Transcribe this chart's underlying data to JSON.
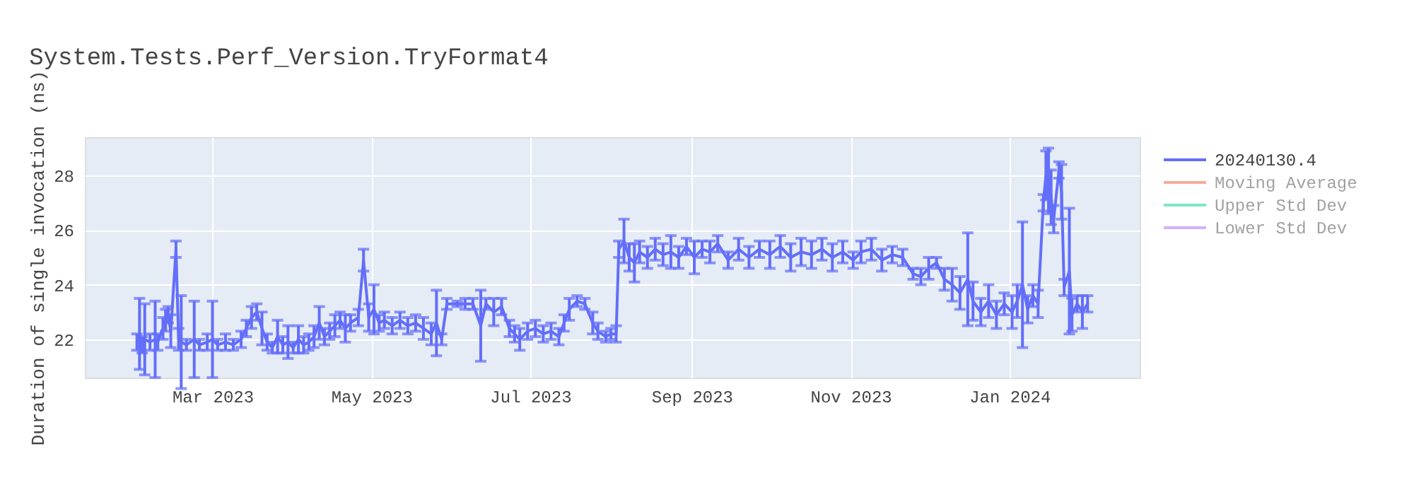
{
  "chart_data": {
    "type": "line",
    "title": "System.Tests.Perf_Version.TryFormat4",
    "ylabel": "Duration of single invocation (ns)",
    "xlim": [
      "2023-01-11",
      "2024-02-20"
    ],
    "xticks": [
      {
        "value": "2023-03-01",
        "label": "Mar 2023"
      },
      {
        "value": "2023-05-01",
        "label": "May 2023"
      },
      {
        "value": "2023-07-01",
        "label": "Jul 2023"
      },
      {
        "value": "2023-09-01",
        "label": "Sep 2023"
      },
      {
        "value": "2023-11-01",
        "label": "Nov 2023"
      },
      {
        "value": "2024-01-01",
        "label": "Jan 2024"
      }
    ],
    "ylim": [
      20.6,
      29.4
    ],
    "yticks": [
      22,
      24,
      26,
      28
    ],
    "grid": true,
    "legend": "top right",
    "series": [
      {
        "name": "20240130.4",
        "color": "#636efa",
        "x": [
          "2023-01-31",
          "2023-02-01",
          "2023-02-02",
          "2023-02-03",
          "2023-02-05",
          "2023-02-07",
          "2023-02-08",
          "2023-02-10",
          "2023-02-11",
          "2023-02-12",
          "2023-02-13",
          "2023-02-15",
          "2023-02-16",
          "2023-02-17",
          "2023-02-19",
          "2023-02-22",
          "2023-02-24",
          "2023-02-27",
          "2023-03-01",
          "2023-03-03",
          "2023-03-06",
          "2023-03-09",
          "2023-03-12",
          "2023-03-14",
          "2023-03-16",
          "2023-03-18",
          "2023-03-20",
          "2023-03-22",
          "2023-03-24",
          "2023-03-26",
          "2023-03-28",
          "2023-03-30",
          "2023-04-01",
          "2023-04-03",
          "2023-04-05",
          "2023-04-07",
          "2023-04-09",
          "2023-04-11",
          "2023-04-13",
          "2023-04-15",
          "2023-04-17",
          "2023-04-19",
          "2023-04-21",
          "2023-04-23",
          "2023-04-26",
          "2023-04-28",
          "2023-04-30",
          "2023-05-02",
          "2023-05-04",
          "2023-05-06",
          "2023-05-09",
          "2023-05-12",
          "2023-05-15",
          "2023-05-18",
          "2023-05-21",
          "2023-05-24",
          "2023-05-26",
          "2023-05-28",
          "2023-05-30",
          "2023-06-03",
          "2023-06-06",
          "2023-06-09",
          "2023-06-12",
          "2023-06-14",
          "2023-06-17",
          "2023-06-20",
          "2023-06-23",
          "2023-06-25",
          "2023-06-27",
          "2023-06-30",
          "2023-07-03",
          "2023-07-06",
          "2023-07-09",
          "2023-07-12",
          "2023-07-14",
          "2023-07-16",
          "2023-07-19",
          "2023-07-22",
          "2023-07-25",
          "2023-07-27",
          "2023-07-30",
          "2023-08-01",
          "2023-08-03",
          "2023-08-04",
          "2023-08-06",
          "2023-08-08",
          "2023-08-10",
          "2023-08-12",
          "2023-08-15",
          "2023-08-18",
          "2023-08-21",
          "2023-08-24",
          "2023-08-27",
          "2023-08-30",
          "2023-09-02",
          "2023-09-05",
          "2023-09-08",
          "2023-09-11",
          "2023-09-15",
          "2023-09-19",
          "2023-09-23",
          "2023-09-27",
          "2023-10-01",
          "2023-10-05",
          "2023-10-09",
          "2023-10-13",
          "2023-10-17",
          "2023-10-21",
          "2023-10-25",
          "2023-10-29",
          "2023-11-02",
          "2023-11-05",
          "2023-11-09",
          "2023-11-13",
          "2023-11-17",
          "2023-11-21",
          "2023-11-25",
          "2023-11-28",
          "2023-12-01",
          "2023-12-04",
          "2023-12-07",
          "2023-12-10",
          "2023-12-13",
          "2023-12-16",
          "2023-12-18",
          "2023-12-21",
          "2023-12-24",
          "2023-12-27",
          "2023-12-30",
          "2024-01-02",
          "2024-01-04",
          "2024-01-06",
          "2024-01-08",
          "2024-01-10",
          "2024-01-12",
          "2024-01-14",
          "2024-01-15",
          "2024-01-16",
          "2024-01-17",
          "2024-01-18",
          "2024-01-20",
          "2024-01-21",
          "2024-01-22",
          "2024-01-24",
          "2024-01-25",
          "2024-01-27",
          "2024-01-29",
          "2024-01-31"
        ],
        "values": [
          21.9,
          22.2,
          21.8,
          22.0,
          21.9,
          22.0,
          21.9,
          22.4,
          22.7,
          22.9,
          22.3,
          25.3,
          22.0,
          21.9,
          21.8,
          22.0,
          21.8,
          21.9,
          22.0,
          21.8,
          21.9,
          21.8,
          22.0,
          22.4,
          22.8,
          23.0,
          22.4,
          21.9,
          21.7,
          22.1,
          21.8,
          21.9,
          21.7,
          22.0,
          21.8,
          21.9,
          22.1,
          22.6,
          22.1,
          22.3,
          22.5,
          22.7,
          22.4,
          22.6,
          22.8,
          24.9,
          22.8,
          23.1,
          22.6,
          22.7,
          22.5,
          22.7,
          22.5,
          22.6,
          22.4,
          22.2,
          22.6,
          22.0,
          23.3,
          23.3,
          23.3,
          23.3,
          22.5,
          23.3,
          23.0,
          23.2,
          22.4,
          22.2,
          22.0,
          22.3,
          22.4,
          22.2,
          22.3,
          22.1,
          22.6,
          23.1,
          23.4,
          23.3,
          22.6,
          22.3,
          22.1,
          22.2,
          22.2,
          25.3,
          25.6,
          25.0,
          24.8,
          25.2,
          25.0,
          25.3,
          25.1,
          25.2,
          25.0,
          25.4,
          25.0,
          25.3,
          25.2,
          25.5,
          24.9,
          25.3,
          25.0,
          25.3,
          25.1,
          25.4,
          25.0,
          25.2,
          25.1,
          25.3,
          25.0,
          25.2,
          24.9,
          25.2,
          25.3,
          24.9,
          25.1,
          25.0,
          24.4,
          24.3,
          24.6,
          24.8,
          24.2,
          24.0,
          23.7,
          24.2,
          23.4,
          23.0,
          23.4,
          22.9,
          23.3,
          23.0,
          23.4,
          24.0,
          23.1,
          23.6,
          23.3,
          27.0,
          28.0,
          27.8,
          27.2,
          26.4,
          28.2,
          27.4,
          23.9,
          24.5,
          22.9,
          23.3,
          23.0,
          23.3
        ],
        "errors": [
          0.3,
          1.3,
          0.3,
          1.3,
          0.3,
          1.4,
          0.3,
          0.4,
          0.4,
          0.3,
          0.6,
          0.3,
          0.4,
          1.7,
          0.2,
          1.4,
          0.2,
          0.3,
          1.4,
          0.2,
          0.3,
          0.2,
          0.3,
          0.3,
          0.4,
          0.3,
          0.6,
          0.3,
          0.2,
          0.6,
          0.3,
          0.6,
          0.2,
          0.5,
          0.3,
          0.3,
          0.4,
          0.6,
          0.3,
          0.3,
          0.4,
          0.3,
          0.5,
          0.3,
          0.3,
          0.4,
          0.5,
          0.9,
          0.3,
          0.3,
          0.3,
          0.3,
          0.3,
          0.3,
          0.4,
          0.4,
          1.2,
          0.2,
          0.2,
          0.1,
          0.2,
          0.2,
          1.3,
          0.2,
          0.5,
          0.3,
          0.3,
          0.3,
          0.4,
          0.3,
          0.3,
          0.3,
          0.3,
          0.3,
          0.3,
          0.4,
          0.2,
          0.2,
          0.4,
          0.3,
          0.2,
          0.2,
          0.3,
          0.3,
          0.8,
          0.5,
          0.7,
          0.4,
          0.4,
          0.4,
          0.4,
          0.6,
          0.4,
          0.3,
          0.6,
          0.3,
          0.4,
          0.3,
          0.3,
          0.4,
          0.4,
          0.3,
          0.5,
          0.4,
          0.5,
          0.5,
          0.5,
          0.4,
          0.5,
          0.4,
          0.3,
          0.4,
          0.4,
          0.4,
          0.3,
          0.3,
          0.2,
          0.3,
          0.4,
          0.2,
          0.4,
          0.6,
          0.6,
          1.7,
          0.7,
          0.5,
          0.6,
          0.5,
          0.4,
          0.6,
          0.6,
          2.3,
          0.5,
          0.4,
          0.5,
          0.3,
          0.9,
          1.2,
          1.0,
          0.5,
          0.3,
          1.0,
          0.3,
          2.3,
          0.6,
          0.3,
          0.6,
          0.3
        ]
      },
      {
        "name": "Moving Average",
        "color": "#ef553b"
      },
      {
        "name": "Upper Std Dev",
        "color": "#00cc96"
      },
      {
        "name": "Lower Std Dev",
        "color": "#ab63fa"
      }
    ]
  }
}
